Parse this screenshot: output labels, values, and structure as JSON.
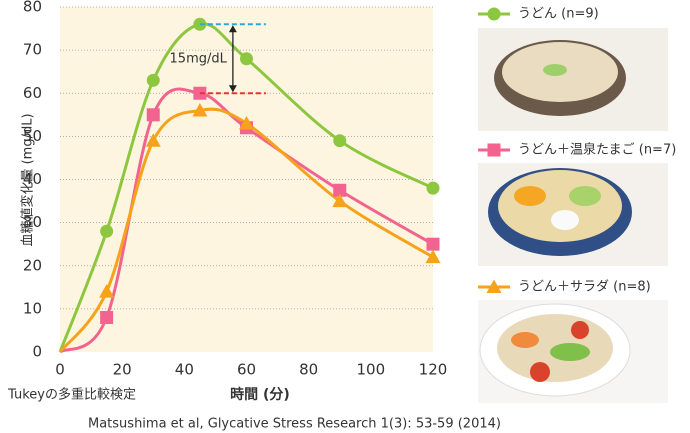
{
  "chart_data": {
    "type": "line",
    "y_label": "血糖値変化量 (mg/dL)",
    "x_label": "時間 (分)",
    "note": "Tukeyの多重比較検定",
    "source": "Matsushima et al, Glycative Stress Research 1(3): 53-59 (2014)",
    "annotation": "15mg/dL",
    "x": [
      0,
      15,
      30,
      45,
      60,
      90,
      120
    ],
    "series": [
      {
        "name": "うどん (n=9)",
        "color": "#8dc63f",
        "marker": "circle",
        "values": [
          0,
          28,
          63,
          76,
          68,
          49,
          38
        ]
      },
      {
        "name": "うどん＋温泉たまご (n=7)",
        "color": "#f2648f",
        "marker": "square",
        "values": [
          0,
          8,
          55,
          60,
          52,
          37.5,
          25
        ]
      },
      {
        "name": "うどん＋サラダ (n=8)",
        "color": "#f7a21b",
        "marker": "triangle",
        "values": [
          0,
          14,
          49,
          56,
          53,
          35,
          22
        ]
      }
    ],
    "xlim": [
      0,
      120
    ],
    "xticks": [
      0,
      20,
      40,
      60,
      80,
      100,
      120
    ],
    "ylim": [
      0,
      80
    ],
    "yticks": [
      0,
      10,
      20,
      30,
      40,
      50,
      60,
      70,
      80
    ],
    "grid": true,
    "legend": "right"
  }
}
